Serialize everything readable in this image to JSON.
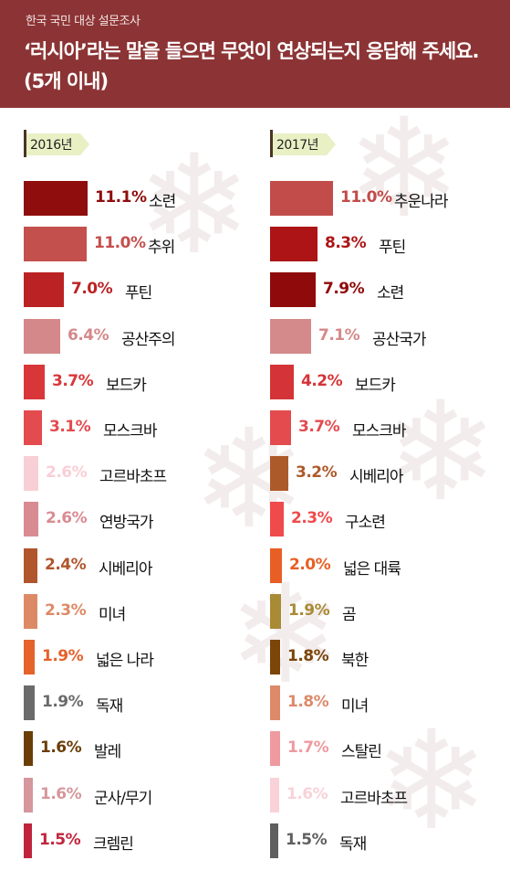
{
  "header": {
    "subtitle": "한국 국민 대상 설문조사",
    "title": "‘러시아’라는 말을 들으면 무엇이 연상되는지 응답해 주세요. (5개 이내)"
  },
  "chart_data": [
    {
      "type": "bar",
      "title": "2016년",
      "unit": "%",
      "categories": [
        "소련",
        "추위",
        "푸틴",
        "공산주의",
        "보드카",
        "모스크바",
        "고르바초프",
        "연방국가",
        "시베리아",
        "미녀",
        "넓은 나라",
        "독재",
        "발레",
        "군사/무기",
        "크렘린"
      ],
      "values": [
        11.1,
        11.0,
        7.0,
        6.4,
        3.7,
        3.1,
        2.6,
        2.6,
        2.4,
        2.3,
        1.9,
        1.9,
        1.6,
        1.6,
        1.5
      ],
      "value_labels": [
        "11.1%",
        "11.0%",
        "7.0%",
        "6.4%",
        "3.7%",
        "3.1%",
        "2.6%",
        "2.6%",
        "2.4%",
        "2.3%",
        "1.9%",
        "1.9%",
        "1.6%",
        "1.6%",
        "1.5%"
      ],
      "colors": [
        "#8f0d0d",
        "#c4504d",
        "#bb2224",
        "#d4888a",
        "#d9363a",
        "#e34b4f",
        "#f8cfd6",
        "#d98b92",
        "#b1552d",
        "#dc8a66",
        "#e5622a",
        "#6b6b6b",
        "#6b3e08",
        "#d5979c",
        "#c0243d"
      ]
    },
    {
      "type": "bar",
      "title": "2017년",
      "unit": "%",
      "categories": [
        "추운나라",
        "푸틴",
        "소련",
        "공산국가",
        "보드카",
        "모스크바",
        "시베리아",
        "구소련",
        "넓은 대륙",
        "곰",
        "북한",
        "미녀",
        "스탈린",
        "고르바초프",
        "독재"
      ],
      "values": [
        11.0,
        8.3,
        7.9,
        7.1,
        4.2,
        3.7,
        3.2,
        2.3,
        2.0,
        1.9,
        1.8,
        1.8,
        1.7,
        1.6,
        1.5
      ],
      "value_labels": [
        "11.0%",
        "8.3%",
        "7.9%",
        "7.1%",
        "4.2%",
        "3.7%",
        "3.2%",
        "2.3%",
        "2.0%",
        "1.9%",
        "1.8%",
        "1.8%",
        "1.7%",
        "1.6%",
        "1.5%"
      ],
      "colors": [
        "#c14c4a",
        "#ac1415",
        "#8f0a0a",
        "#d48a8a",
        "#d43437",
        "#e34b4f",
        "#ad5a2a",
        "#ef4a4c",
        "#e85f25",
        "#a98a35",
        "#7a4609",
        "#dd8a6a",
        "#ee9aa0",
        "#f8d2d8",
        "#5f5f5f"
      ]
    }
  ]
}
